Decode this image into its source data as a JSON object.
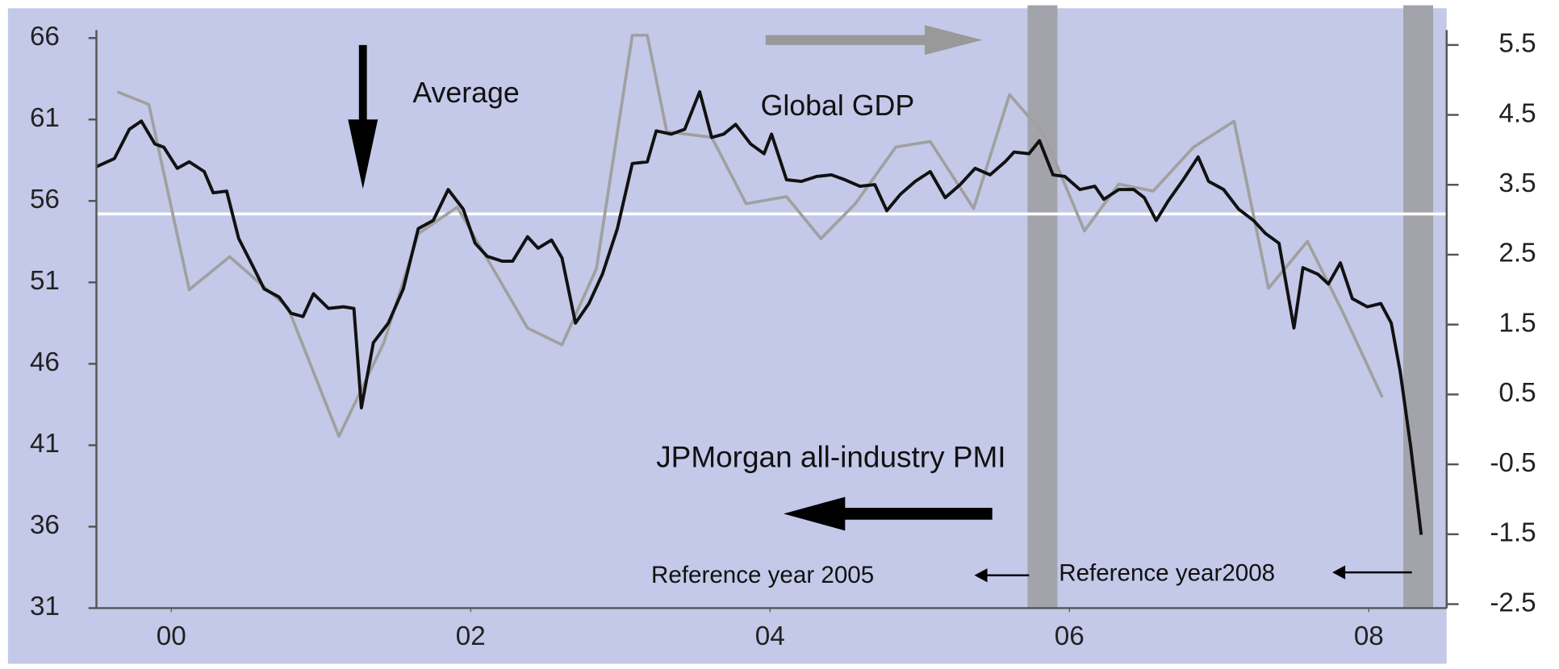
{
  "chart_data": {
    "type": "line",
    "annotations": [
      "Average",
      "Global GDP",
      "JPMorgan all-industry PMI",
      "Reference year 2005",
      "Reference year2008"
    ],
    "average": 55.2,
    "shaded_x": [
      5.82,
      8.33
    ],
    "xlim": [
      -0.5,
      8.52
    ],
    "xticks": [
      {
        "value": 0,
        "label": "00"
      },
      {
        "value": 2,
        "label": "02"
      },
      {
        "value": 4,
        "label": "04"
      },
      {
        "value": 6,
        "label": "06"
      },
      {
        "value": 8,
        "label": "08"
      }
    ],
    "ylim": [
      31,
      66
    ],
    "yticks": [
      31,
      36,
      41,
      46,
      51,
      56,
      61,
      66
    ],
    "y2lim": [
      -2.5,
      5.5
    ],
    "y2ticks": [
      -2.5,
      -1.5,
      -0.5,
      0.5,
      1.5,
      2.5,
      3.5,
      4.5,
      5.5
    ],
    "series": [
      {
        "color": "#111111",
        "x": [
          -0.5,
          -0.38,
          -0.28,
          -0.2,
          -0.11,
          -0.05,
          0.04,
          0.12,
          0.22,
          0.28,
          0.37,
          0.45,
          0.55,
          0.62,
          0.72,
          0.8,
          0.88,
          0.95,
          1.05,
          1.15,
          1.22,
          1.27,
          1.35,
          1.45,
          1.55,
          1.65,
          1.75,
          1.85,
          1.95,
          2.03,
          2.11,
          2.21,
          2.28,
          2.38,
          2.45,
          2.54,
          2.61,
          2.7,
          2.79,
          2.88,
          2.98,
          3.08,
          3.18,
          3.24,
          3.34,
          3.43,
          3.53,
          3.61,
          3.69,
          3.77,
          3.87,
          3.96,
          4.01,
          4.11,
          4.21,
          4.31,
          4.41,
          4.5,
          4.6,
          4.7,
          4.78,
          4.87,
          4.97,
          5.07,
          5.17,
          5.27,
          5.37,
          5.47,
          5.57,
          5.63,
          5.73,
          5.8,
          5.89,
          5.97,
          6.07,
          6.17,
          6.23,
          6.33,
          6.43,
          6.5,
          6.58,
          6.66,
          6.76,
          6.86,
          6.93,
          7.03,
          7.13,
          7.23,
          7.31,
          7.4,
          7.5,
          7.56,
          7.66,
          7.73,
          7.81,
          7.89,
          7.99,
          8.08,
          8.15,
          8.21,
          8.28,
          8.35
        ],
        "values": [
          58.1,
          58.6,
          60.4,
          60.9,
          59.5,
          59.3,
          58.0,
          58.4,
          57.8,
          56.5,
          56.6,
          53.7,
          51.9,
          50.6,
          50.1,
          49.1,
          48.9,
          50.3,
          49.4,
          49.5,
          49.4,
          43.3,
          47.3,
          48.5,
          50.6,
          54.3,
          54.8,
          56.7,
          55.5,
          53.4,
          52.6,
          52.3,
          52.3,
          53.8,
          53.1,
          53.6,
          52.5,
          48.5,
          49.7,
          51.5,
          54.3,
          58.3,
          58.4,
          60.3,
          60.1,
          60.4,
          62.7,
          59.9,
          60.1,
          60.7,
          59.5,
          58.9,
          60.1,
          57.3,
          57.2,
          57.5,
          57.6,
          57.3,
          56.9,
          57.0,
          55.4,
          56.4,
          57.2,
          57.8,
          56.2,
          57.0,
          58.0,
          57.6,
          58.4,
          59.0,
          58.9,
          59.7,
          57.6,
          57.5,
          56.7,
          56.9,
          56.1,
          56.7,
          56.7,
          56.2,
          54.8,
          56.0,
          57.3,
          58.7,
          57.2,
          56.7,
          55.5,
          54.8,
          54.0,
          53.4,
          48.2,
          51.9,
          51.5,
          50.9,
          52.2,
          50.0,
          49.5,
          49.7,
          48.5,
          45.5,
          40.9,
          35.5
        ]
      },
      {
        "color": "#a0a0a0",
        "axis": "y2",
        "x": [
          -0.36,
          -0.15,
          0.12,
          0.39,
          0.78,
          1.12,
          1.42,
          1.65,
          1.91,
          2.38,
          2.61,
          2.84,
          3.08,
          3.18,
          3.31,
          3.61,
          3.84,
          4.11,
          4.34,
          4.57,
          4.84,
          5.07,
          5.36,
          5.6,
          5.83,
          6.1,
          6.33,
          6.56,
          6.83,
          7.1,
          7.33,
          7.59,
          7.83,
          8.09
        ],
        "values": [
          4.83,
          4.65,
          2.0,
          2.47,
          1.74,
          -0.1,
          1.24,
          2.8,
          3.18,
          1.45,
          1.21,
          2.3,
          5.64,
          5.64,
          4.26,
          4.18,
          3.23,
          3.33,
          2.73,
          3.23,
          4.04,
          4.12,
          3.16,
          4.79,
          4.22,
          2.84,
          3.51,
          3.41,
          4.04,
          4.41,
          2.02,
          2.69,
          1.66,
          0.46
        ]
      }
    ]
  }
}
